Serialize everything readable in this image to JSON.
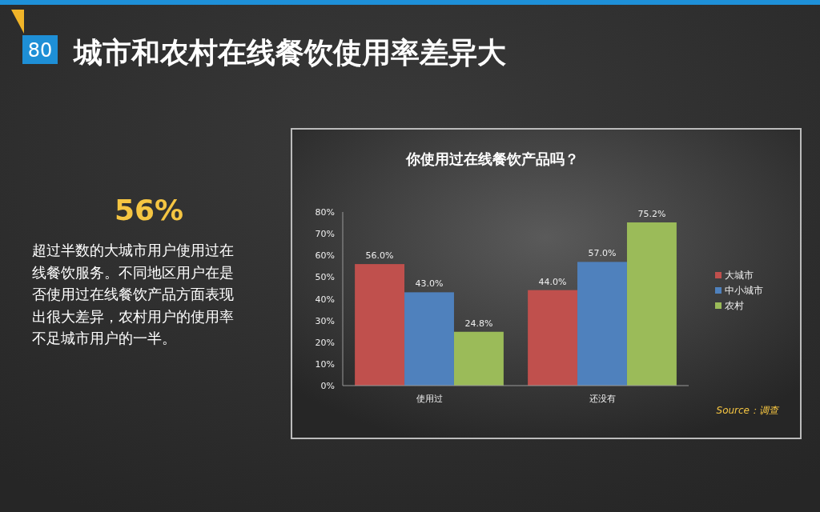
{
  "chart_data": {
    "type": "bar",
    "title": "城市和农村在线餐饮使用率差异大",
    "subtitle": "你使用过在线餐饮产品吗？",
    "categories": [
      "使用过",
      "还没有"
    ],
    "series": [
      {
        "name": "大城市",
        "color": "#c0504d",
        "values": [
          56.0,
          44.0
        ],
        "value_labels": [
          "56.0%",
          "44.0%"
        ]
      },
      {
        "name": "中小城市",
        "color": "#4f81bd",
        "values": [
          43.0,
          57.0
        ],
        "value_labels": [
          "43.0%",
          "57.0%"
        ]
      },
      {
        "name": "农村",
        "color": "#9bbb59",
        "values": [
          24.8,
          75.2
        ],
        "value_labels": [
          "24.8%",
          "75.2%"
        ]
      }
    ],
    "ylim": [
      0,
      80
    ],
    "yticks": [
      {
        "value": 0,
        "label": "0%"
      },
      {
        "value": 10,
        "label": "10%"
      },
      {
        "value": 20,
        "label": "20%"
      },
      {
        "value": 30,
        "label": "30%"
      },
      {
        "value": 40,
        "label": "40%"
      },
      {
        "value": 50,
        "label": "50%"
      },
      {
        "value": 60,
        "label": "60%"
      },
      {
        "value": 70,
        "label": "70%"
      },
      {
        "value": 80,
        "label": "80%"
      }
    ],
    "legend": "right",
    "annotations": [
      "80",
      "56%",
      "超过半数的大城市用户使用过在线餐饮服务。不同地区用户在是否使用过在线餐饮产品方面表现出很大差异，农村用户的使用率不足城市用户的一半。",
      "Source：调查"
    ]
  }
}
